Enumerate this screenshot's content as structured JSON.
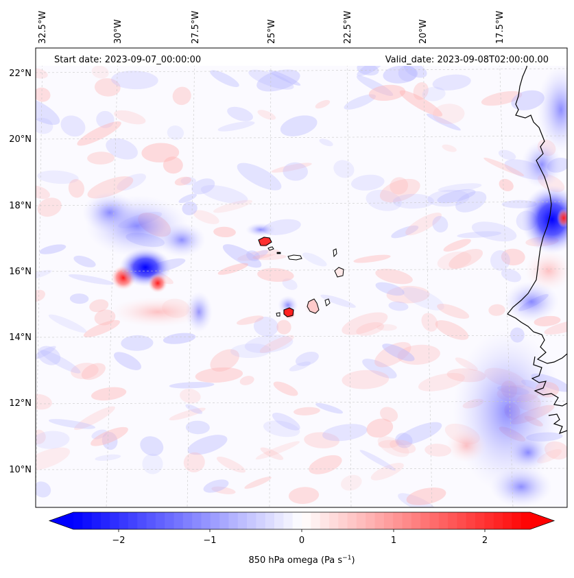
{
  "map": {
    "start_date": "Start date: 2023-09-07_00:00:00",
    "valid_date": "Valid_date: 2023-09-08T02:00:00.00",
    "lon_labels": [
      "32.5°W",
      "30°W",
      "27.5°W",
      "25°W",
      "22.5°W",
      "20°W",
      "17.5°W"
    ],
    "lat_labels": [
      "22°N",
      "20°N",
      "18°N",
      "16°N",
      "14°N",
      "12°N",
      "10°N"
    ],
    "features": {
      "low_center": "strong negative omega near 15.9°N 29.5°W",
      "cape_verde": "Cape Verde islands",
      "africa_coast": "West African coastline"
    }
  },
  "colorbar": {
    "ticks": [
      "−2",
      "−1",
      "0",
      "1",
      "2"
    ],
    "label": "850 hPa omega (Pa s",
    "label_exp": "−1",
    "label_close": ")",
    "min": -2.7,
    "max": 2.7,
    "colors": {
      "negative": "#0000ff",
      "zero": "#ffffff",
      "positive": "#ff0000"
    }
  }
}
